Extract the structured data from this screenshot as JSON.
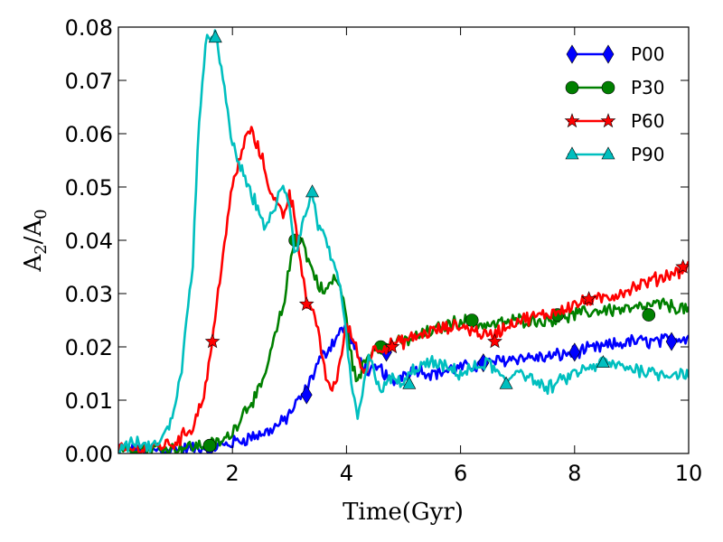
{
  "chart_data": {
    "type": "line",
    "title": "",
    "xlabel": "Time(Gyr)",
    "ylabel_main": "A",
    "ylabel_sub1": "2",
    "ylabel_sep": "/",
    "ylabel_sub2": "0",
    "xlim": [
      0,
      10
    ],
    "ylim": [
      0,
      0.08
    ],
    "xticks": [
      2,
      4,
      6,
      8,
      10
    ],
    "xtick_labels": [
      "2",
      "4",
      "6",
      "8",
      "10"
    ],
    "yticks": [
      0,
      0.01,
      0.02,
      0.03,
      0.04,
      0.05,
      0.06,
      0.07,
      0.08
    ],
    "ytick_labels": [
      "0.00",
      "0.01",
      "0.02",
      "0.03",
      "0.04",
      "0.05",
      "0.06",
      "0.07",
      "0.08"
    ],
    "legend_position": "top-right",
    "series": [
      {
        "name": "P00",
        "color": "#0000ff",
        "marker": "diamond",
        "x": [
          0,
          0.5,
          1.0,
          1.5,
          1.8,
          2.0,
          2.3,
          2.6,
          2.9,
          3.1,
          3.3,
          3.5,
          3.7,
          3.9,
          4.0,
          4.2,
          4.4,
          4.6,
          4.8,
          5.0,
          5.2,
          5.5,
          6.0,
          6.5,
          7.0,
          7.5,
          8.0,
          8.5,
          9.0,
          9.5,
          10.0
        ],
        "y": [
          0.001,
          0.0005,
          0.0008,
          0.001,
          0.0015,
          0.002,
          0.003,
          0.004,
          0.006,
          0.009,
          0.012,
          0.017,
          0.02,
          0.023,
          0.024,
          0.018,
          0.015,
          0.016,
          0.013,
          0.015,
          0.016,
          0.015,
          0.016,
          0.017,
          0.018,
          0.018,
          0.019,
          0.02,
          0.021,
          0.021,
          0.022
        ],
        "markers_x": [
          1.6,
          3.3,
          4.7,
          6.4,
          8.0,
          9.7
        ],
        "markers_y": [
          0.001,
          0.011,
          0.019,
          0.017,
          0.019,
          0.021
        ]
      },
      {
        "name": "P30",
        "color": "#008000",
        "marker": "circle",
        "x": [
          0,
          0.5,
          1.0,
          1.5,
          1.8,
          2.0,
          2.2,
          2.5,
          2.7,
          2.9,
          3.0,
          3.1,
          3.2,
          3.3,
          3.5,
          3.6,
          3.8,
          3.9,
          4.0,
          4.1,
          4.2,
          4.3,
          4.5,
          4.7,
          5.0,
          5.5,
          6.0,
          6.5,
          7.0,
          7.5,
          8.0,
          8.5,
          9.0,
          9.5,
          10.0
        ],
        "y": [
          0.001,
          0.001,
          0.001,
          0.0015,
          0.002,
          0.004,
          0.008,
          0.012,
          0.02,
          0.028,
          0.035,
          0.04,
          0.041,
          0.037,
          0.032,
          0.03,
          0.033,
          0.031,
          0.025,
          0.017,
          0.013,
          0.017,
          0.02,
          0.02,
          0.021,
          0.023,
          0.025,
          0.024,
          0.025,
          0.025,
          0.026,
          0.027,
          0.027,
          0.028,
          0.027
        ],
        "markers_x": [
          1.6,
          3.1,
          4.6,
          6.2,
          7.7,
          9.3
        ],
        "markers_y": [
          0.0015,
          0.04,
          0.02,
          0.025,
          0.026,
          0.026
        ]
      },
      {
        "name": "P60",
        "color": "#ff0000",
        "marker": "star",
        "x": [
          0,
          0.5,
          1.0,
          1.3,
          1.5,
          1.65,
          1.8,
          2.0,
          2.2,
          2.3,
          2.5,
          2.7,
          2.9,
          3.0,
          3.1,
          3.2,
          3.3,
          3.5,
          3.6,
          3.7,
          3.8,
          3.9,
          4.0,
          4.1,
          4.3,
          4.5,
          4.7,
          5.0,
          5.5,
          6.0,
          6.5,
          7.0,
          7.5,
          8.0,
          8.5,
          9.0,
          9.5,
          10.0
        ],
        "y": [
          0.0005,
          0.001,
          0.002,
          0.005,
          0.011,
          0.021,
          0.035,
          0.05,
          0.058,
          0.061,
          0.056,
          0.048,
          0.045,
          0.049,
          0.044,
          0.036,
          0.028,
          0.024,
          0.016,
          0.012,
          0.013,
          0.018,
          0.024,
          0.022,
          0.015,
          0.02,
          0.02,
          0.021,
          0.023,
          0.024,
          0.022,
          0.025,
          0.026,
          0.028,
          0.029,
          0.031,
          0.033,
          0.035
        ],
        "markers_x": [
          1.65,
          3.3,
          4.8,
          6.6,
          8.25,
          9.9
        ],
        "markers_y": [
          0.021,
          0.028,
          0.02,
          0.021,
          0.029,
          0.035
        ]
      },
      {
        "name": "P90",
        "color": "#00bfbf",
        "marker": "triangle",
        "x": [
          0,
          0.3,
          0.6,
          0.9,
          1.1,
          1.3,
          1.4,
          1.55,
          1.7,
          1.8,
          2.0,
          2.2,
          2.4,
          2.6,
          2.8,
          2.9,
          3.0,
          3.1,
          3.2,
          3.4,
          3.5,
          3.7,
          3.9,
          4.0,
          4.1,
          4.2,
          4.4,
          4.6,
          4.8,
          5.0,
          5.2,
          5.5,
          6.0,
          6.5,
          6.8,
          7.0,
          7.5,
          8.0,
          8.5,
          9.0,
          9.5,
          10.0
        ],
        "y": [
          0.001,
          0.002,
          0.001,
          0.005,
          0.015,
          0.035,
          0.06,
          0.078,
          0.079,
          0.072,
          0.058,
          0.052,
          0.047,
          0.042,
          0.048,
          0.05,
          0.047,
          0.037,
          0.042,
          0.049,
          0.043,
          0.038,
          0.03,
          0.022,
          0.011,
          0.007,
          0.018,
          0.012,
          0.014,
          0.013,
          0.016,
          0.017,
          0.015,
          0.017,
          0.013,
          0.016,
          0.012,
          0.015,
          0.017,
          0.016,
          0.015,
          0.015
        ],
        "markers_x": [
          1.7,
          3.4,
          5.1,
          6.8,
          8.5
        ],
        "markers_y": [
          0.078,
          0.049,
          0.013,
          0.013,
          0.017
        ]
      }
    ]
  }
}
